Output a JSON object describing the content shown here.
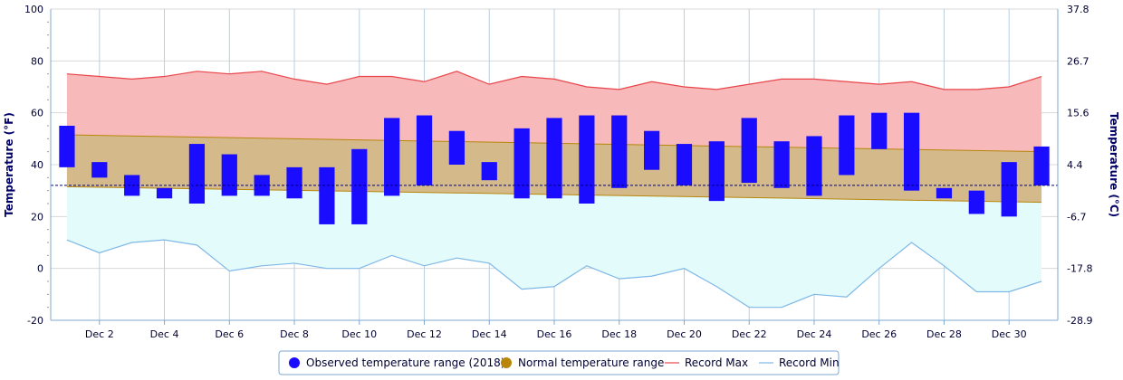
{
  "chart_data": {
    "type": "bar",
    "ylabel": "Temperature (°F)",
    "y2label": "Temperature (°C)",
    "ylim": [
      -20,
      100
    ],
    "yticks": [
      -20,
      0,
      20,
      40,
      60,
      80,
      100
    ],
    "y2ticks": [
      "-28.9",
      "-17.8",
      "-6.7",
      "4.4",
      "15.6",
      "26.7",
      "37.8"
    ],
    "x_days": [
      1,
      2,
      3,
      4,
      5,
      6,
      7,
      8,
      9,
      10,
      11,
      12,
      13,
      14,
      15,
      16,
      17,
      18,
      19,
      20,
      21,
      22,
      23,
      24,
      25,
      26,
      27,
      28,
      29,
      30,
      31
    ],
    "xtick_labels": [
      "Dec 2",
      "Dec 4",
      "Dec 6",
      "Dec 8",
      "Dec 10",
      "Dec 12",
      "Dec 14",
      "Dec 16",
      "Dec 18",
      "Dec 20",
      "Dec 22",
      "Dec 24",
      "Dec 26",
      "Dec 28",
      "Dec 30"
    ],
    "observed": {
      "name": "Observed temperature range (2018)",
      "color": "#1a0dff",
      "low": [
        39,
        35,
        28,
        27,
        25,
        28,
        28,
        27,
        17,
        17,
        28,
        32,
        40,
        34,
        27,
        27,
        25,
        31,
        38,
        32,
        26,
        33,
        31,
        28,
        36,
        46,
        30,
        27,
        21,
        20,
        32
      ],
      "high": [
        55,
        41,
        36,
        31,
        48,
        44,
        36,
        39,
        39,
        46,
        58,
        59,
        53,
        41,
        54,
        58,
        59,
        59,
        53,
        48,
        49,
        58,
        49,
        51,
        59,
        60,
        60,
        31,
        30,
        41,
        47
      ]
    },
    "normal": {
      "name": "Normal temperature range",
      "color": "#b8860b",
      "fill": "#d4b98a",
      "high": [
        51.5,
        45
      ],
      "low": [
        31.5,
        25.5
      ]
    },
    "record_max": {
      "name": "Record Max",
      "color": "#e8454b",
      "fill": "#f7b9b9",
      "values": [
        75,
        74,
        73,
        74,
        76,
        75,
        76,
        73,
        71,
        74,
        74,
        72,
        76,
        71,
        74,
        73,
        70,
        69,
        72,
        70,
        69,
        71,
        73,
        73,
        72,
        71,
        72,
        69,
        69,
        70,
        74
      ]
    },
    "record_min": {
      "name": "Record Min",
      "color": "#7fb8e6",
      "fill": "#e3fbfb",
      "values": [
        11,
        6,
        10,
        11,
        9,
        -1,
        1,
        2,
        0,
        0,
        5,
        1,
        4,
        2,
        -8,
        -7,
        1,
        -4,
        -3,
        0,
        -7,
        -15,
        -15,
        -10,
        -11,
        0,
        10,
        1,
        -9,
        -9,
        -5
      ]
    },
    "reference_line": 32,
    "legend_position": "bottom"
  },
  "legend": {
    "observed": "Observed temperature range (2018)",
    "normal": "Normal temperature range",
    "record_max": "Record Max",
    "record_min": "Record Min"
  }
}
